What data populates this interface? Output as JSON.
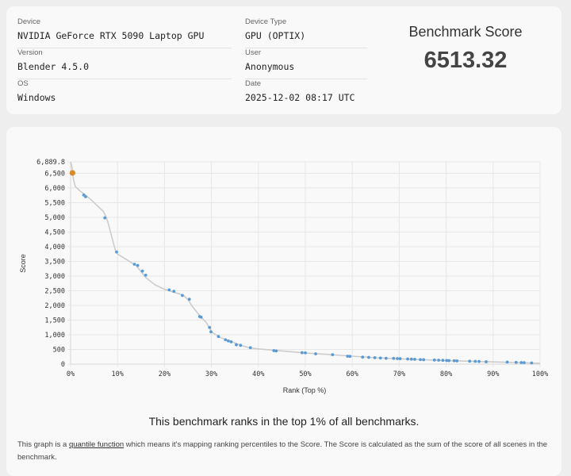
{
  "info": {
    "device_label": "Device",
    "device_value": "NVIDIA GeForce RTX 5090 Laptop GPU",
    "version_label": "Version",
    "version_value": "Blender 4.5.0",
    "os_label": "OS",
    "os_value": "Windows",
    "device_type_label": "Device Type",
    "device_type_value": "GPU (OPTIX)",
    "user_label": "User",
    "user_value": "Anonymous",
    "date_label": "Date",
    "date_value": "2025-12-02 08:17 UTC"
  },
  "score": {
    "title": "Benchmark Score",
    "value": "6513.32"
  },
  "summary": "This benchmark ranks in the top 1% of all benchmarks.",
  "footnote": {
    "before": "This graph is a ",
    "link": "quantile function",
    "after": " which means it's mapping ranking percentiles to the Score. The Score is calculated as the sum of the score of all scenes in the benchmark."
  },
  "colors": {
    "points": "#5b9bd5",
    "highlight": "#d98a2b",
    "line": "#cccccc",
    "grid": "#e6e6e6"
  },
  "chart_data": {
    "type": "scatter",
    "xlabel": "Rank (Top %)",
    "ylabel": "Score",
    "xlim": [
      0,
      100
    ],
    "ylim": [
      0,
      6889.8
    ],
    "x_ticks": [
      "0%",
      "10%",
      "20%",
      "30%",
      "40%",
      "50%",
      "60%",
      "70%",
      "80%",
      "90%",
      "100%"
    ],
    "y_ticks": [
      {
        "value": 0,
        "label": "0"
      },
      {
        "value": 500,
        "label": "500"
      },
      {
        "value": 1000,
        "label": "1,000"
      },
      {
        "value": 1500,
        "label": "1,500"
      },
      {
        "value": 2000,
        "label": "2,000"
      },
      {
        "value": 2500,
        "label": "2,500"
      },
      {
        "value": 3000,
        "label": "3,000"
      },
      {
        "value": 3500,
        "label": "3,500"
      },
      {
        "value": 4000,
        "label": "4,000"
      },
      {
        "value": 4500,
        "label": "4,500"
      },
      {
        "value": 5000,
        "label": "5,000"
      },
      {
        "value": 5500,
        "label": "5,500"
      },
      {
        "value": 6000,
        "label": "6,000"
      },
      {
        "value": 6500,
        "label": "6,500"
      },
      {
        "value": 6889.8,
        "label": "6,889.8"
      }
    ],
    "curve": [
      [
        0,
        6889.8
      ],
      [
        0.3,
        6700
      ],
      [
        0.6,
        6300
      ],
      [
        1,
        6050
      ],
      [
        2,
        5900
      ],
      [
        3,
        5780
      ],
      [
        4,
        5650
      ],
      [
        5,
        5500
      ],
      [
        6,
        5350
      ],
      [
        7,
        5200
      ],
      [
        7.6,
        5000
      ],
      [
        8,
        4800
      ],
      [
        8.5,
        4500
      ],
      [
        9,
        4200
      ],
      [
        9.5,
        3900
      ],
      [
        10,
        3750
      ],
      [
        12,
        3550
      ],
      [
        14,
        3350
      ],
      [
        15,
        3150
      ],
      [
        16,
        2950
      ],
      [
        18,
        2700
      ],
      [
        20,
        2550
      ],
      [
        22,
        2450
      ],
      [
        24,
        2350
      ],
      [
        25,
        2200
      ],
      [
        26,
        1950
      ],
      [
        27.5,
        1650
      ],
      [
        29,
        1400
      ],
      [
        30,
        1100
      ],
      [
        32,
        900
      ],
      [
        34,
        780
      ],
      [
        36,
        660
      ],
      [
        38,
        560
      ],
      [
        40,
        520
      ],
      [
        45,
        450
      ],
      [
        50,
        380
      ],
      [
        55,
        330
      ],
      [
        60,
        270
      ],
      [
        65,
        220
      ],
      [
        70,
        180
      ],
      [
        75,
        150
      ],
      [
        80,
        125
      ],
      [
        85,
        100
      ],
      [
        90,
        75
      ],
      [
        95,
        55
      ],
      [
        100,
        30
      ]
    ],
    "points": [
      [
        2.8,
        5760
      ],
      [
        3.2,
        5700
      ],
      [
        7.3,
        4980
      ],
      [
        9.8,
        3820
      ],
      [
        13.6,
        3400
      ],
      [
        14.3,
        3360
      ],
      [
        15.3,
        3170
      ],
      [
        16,
        3030
      ],
      [
        21,
        2530
      ],
      [
        22,
        2480
      ],
      [
        23.8,
        2340
      ],
      [
        25.3,
        2210
      ],
      [
        27.5,
        1620
      ],
      [
        27.8,
        1600
      ],
      [
        29.6,
        1250
      ],
      [
        29.9,
        1100
      ],
      [
        31.5,
        940
      ],
      [
        33,
        830
      ],
      [
        33.6,
        790
      ],
      [
        34.2,
        760
      ],
      [
        35.3,
        660
      ],
      [
        36.2,
        640
      ],
      [
        38.3,
        560
      ],
      [
        43.3,
        460
      ],
      [
        43.8,
        450
      ],
      [
        49.3,
        390
      ],
      [
        50,
        385
      ],
      [
        52.2,
        350
      ],
      [
        55.8,
        320
      ],
      [
        59,
        270
      ],
      [
        59.5,
        265
      ],
      [
        62.2,
        240
      ],
      [
        63.5,
        230
      ],
      [
        64.8,
        220
      ],
      [
        66,
        210
      ],
      [
        67.2,
        200
      ],
      [
        68.8,
        195
      ],
      [
        69.6,
        190
      ],
      [
        70.2,
        185
      ],
      [
        71.8,
        175
      ],
      [
        72.6,
        170
      ],
      [
        73.3,
        165
      ],
      [
        74.5,
        155
      ],
      [
        75.2,
        150
      ],
      [
        77.5,
        140
      ],
      [
        78.4,
        135
      ],
      [
        79.3,
        130
      ],
      [
        80.1,
        125
      ],
      [
        80.6,
        120
      ],
      [
        81.7,
        115
      ],
      [
        82.3,
        110
      ],
      [
        85,
        100
      ],
      [
        86.2,
        95
      ],
      [
        87,
        90
      ],
      [
        88.5,
        80
      ],
      [
        93,
        70
      ],
      [
        94.9,
        60
      ],
      [
        96,
        55
      ],
      [
        96.6,
        50
      ],
      [
        98.2,
        40
      ]
    ],
    "highlight_point": [
      0.4,
      6513.32
    ]
  }
}
